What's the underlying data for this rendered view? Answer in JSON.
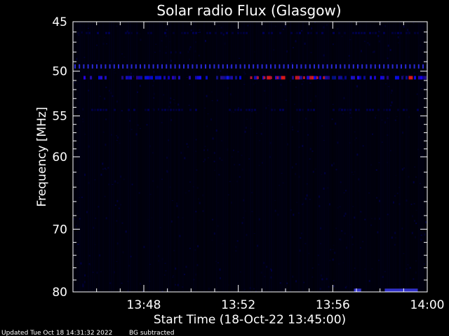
{
  "chart_data": {
    "type": "heatmap",
    "title": "Solar radio Flux (Glasgow)",
    "xlabel": "Start Time (18-Oct-22 13:45:00)",
    "ylabel": "Frequency [MHz]",
    "x_ticks": [
      {
        "label": "13:48",
        "minutes": 3
      },
      {
        "label": "13:52",
        "minutes": 7
      },
      {
        "label": "13:56",
        "minutes": 11
      },
      {
        "label": "14:00",
        "minutes": 15
      }
    ],
    "xlim_minutes": [
      0,
      15
    ],
    "y_scale": "log",
    "ylim": [
      45,
      80
    ],
    "y_inverted": true,
    "y_ticks": [
      45,
      50,
      55,
      60,
      70,
      80
    ],
    "colors": {
      "background": "#000000",
      "axes": "#ffffff",
      "low": "#000014",
      "mid": "#2020e0",
      "high": "#e01010"
    },
    "features": [
      {
        "kind": "band",
        "frequency_mhz": 49.5,
        "intensity": "medium",
        "pattern": "dashed"
      },
      {
        "kind": "band",
        "frequency_mhz": 50.7,
        "intensity": "medium-high",
        "pattern": "intermittent",
        "peaks_minutes": [
          8.3,
          8.9,
          9.5,
          10.1,
          14.3
        ]
      },
      {
        "kind": "band",
        "frequency_mhz": 46.1,
        "intensity": "low",
        "pattern": "faint"
      },
      {
        "kind": "band",
        "frequency_mhz": 54.3,
        "intensity": "low",
        "pattern": "faint"
      },
      {
        "kind": "patch",
        "frequency_mhz": 79.8,
        "minutes_range": [
          13.2,
          14.6
        ],
        "intensity": "medium"
      },
      {
        "kind": "patch",
        "frequency_mhz": 79.8,
        "minutes_range": [
          11.9,
          12.2
        ],
        "intensity": "medium"
      }
    ],
    "grid": false,
    "legend": "none"
  },
  "footer": {
    "updated": "Updated Tue Oct 18 14:31:32 2022",
    "note": "BG subtracted"
  }
}
